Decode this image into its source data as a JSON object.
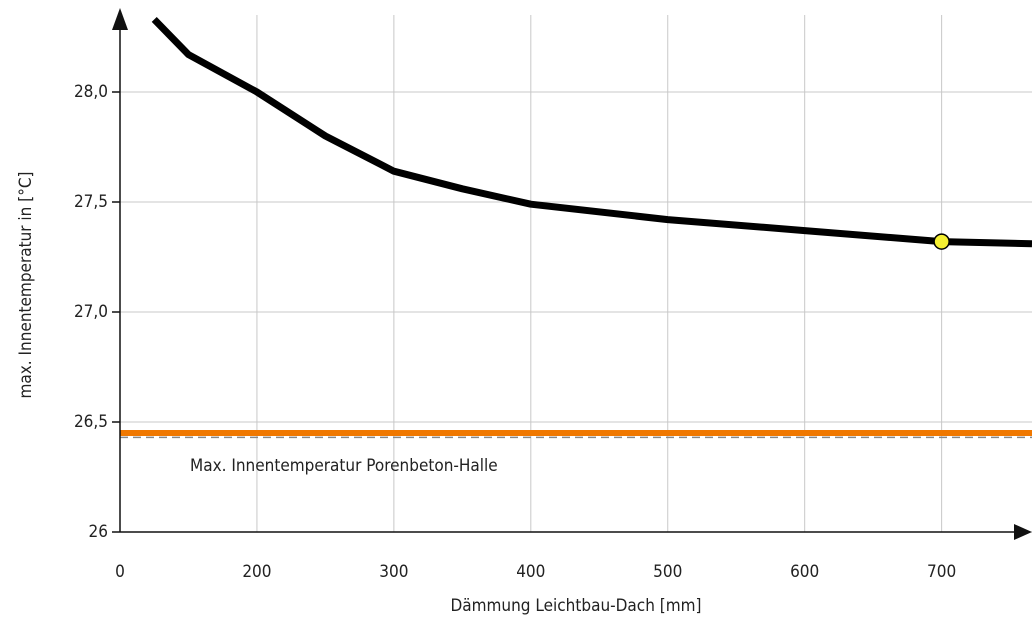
{
  "chart_data": {
    "type": "line",
    "x_label": "Dämmung Leichtbau-Dach [mm]",
    "y_label": "max. Innentemperatur in [°C]",
    "xlim": [
      100,
      766
    ],
    "ylim": [
      26,
      28.35
    ],
    "xticks": [
      {
        "value": 100,
        "label": "0"
      },
      200,
      300,
      400,
      500,
      600,
      700
    ],
    "yticks": [
      26,
      {
        "value": 26.5,
        "label": "26,5"
      },
      {
        "value": 27.0,
        "label": "27,0"
      },
      {
        "value": 27.5,
        "label": "27,5"
      },
      {
        "value": 28.0,
        "label": "28,0"
      }
    ],
    "grid": true,
    "x": [
      125,
      150,
      200,
      250,
      300,
      350,
      400,
      500,
      600,
      700,
      766
    ],
    "series": [
      {
        "color": "#000000",
        "values": [
          28.33,
          28.17,
          28.0,
          27.8,
          27.64,
          27.56,
          27.49,
          27.42,
          27.37,
          27.32,
          27.31
        ]
      }
    ],
    "highlight": {
      "x": 700,
      "y": 27.32,
      "color": "#f5f032"
    },
    "reference_lines": [
      {
        "value": 26.45,
        "color": "#f07800"
      },
      {
        "value": 26.43,
        "color": "#888888",
        "dashed": true
      }
    ],
    "annotation": "Max. Innentemperatur Porenbeton-Halle"
  }
}
